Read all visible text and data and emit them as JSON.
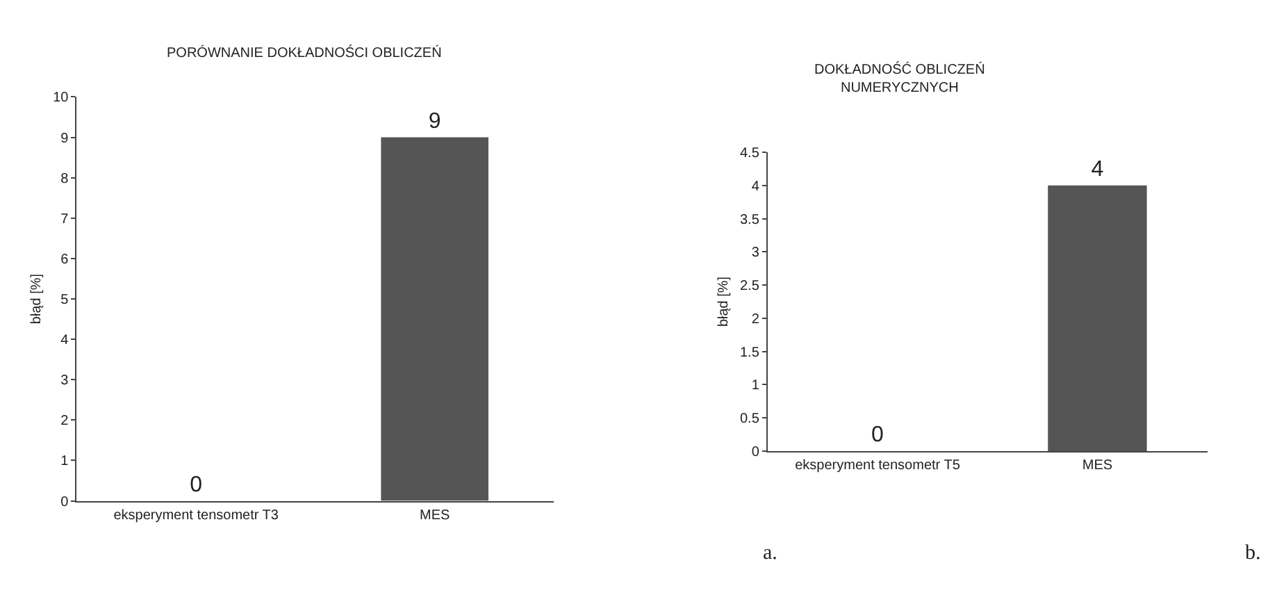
{
  "chart_data": [
    {
      "type": "bar",
      "title": "PORÓWNANIE DOKŁADNOŚCI OBLICZEŃ",
      "ylabel": "błąd [%]",
      "categories": [
        "eksperyment tensometr T3",
        "MES"
      ],
      "values": [
        0,
        9
      ],
      "color": "#555555",
      "ylim": [
        0,
        10
      ],
      "yticks": [
        0,
        1,
        2,
        3,
        4,
        5,
        6,
        7,
        8,
        9,
        10
      ],
      "data_labels": true,
      "annotations": [
        "a."
      ]
    },
    {
      "type": "bar",
      "title": "DOKŁADNOŚĆ OBLICZEŃ\nNUMERYCZNYCH",
      "ylabel": "błąd [%]",
      "categories": [
        "eksperyment tensometr T5",
        "MES"
      ],
      "values": [
        0,
        4
      ],
      "color": "#555555",
      "ylim": [
        0,
        4.5
      ],
      "yticks": [
        0,
        0.5,
        1,
        1.5,
        2,
        2.5,
        3,
        3.5,
        4,
        4.5
      ],
      "data_labels": true,
      "annotations": [
        "b."
      ]
    }
  ]
}
